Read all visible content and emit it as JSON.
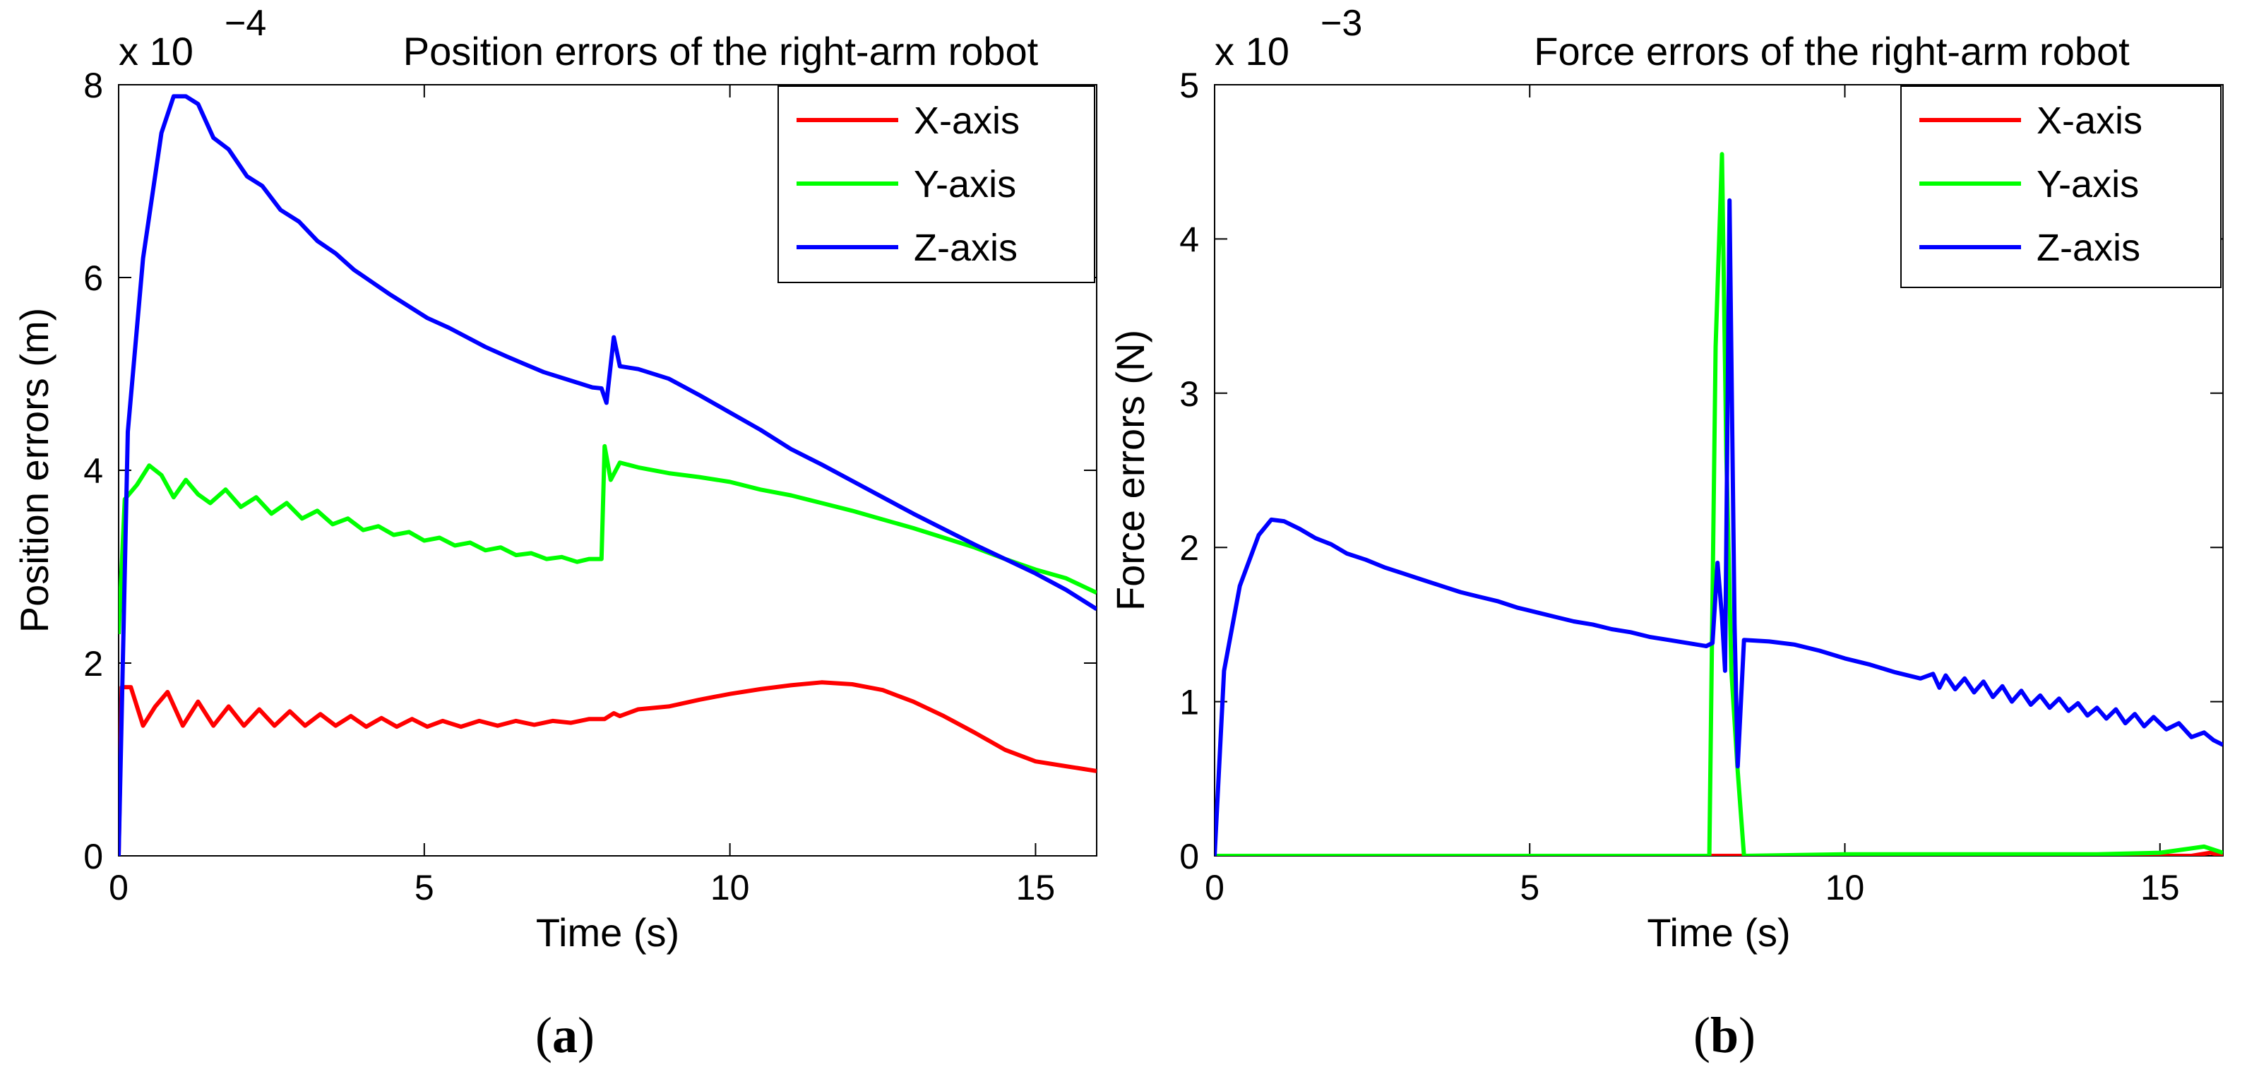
{
  "chart_data": [
    {
      "type": "line",
      "panel": "(a)",
      "panel_letter": "a",
      "title": "Position errors of the right-arm robot",
      "multiplier": "x 10",
      "exponent": "−4",
      "xlabel": "Time (s)",
      "ylabel": "Position errors (m)",
      "xlim": [
        0,
        16
      ],
      "ylim": [
        0,
        8
      ],
      "xticks": [
        0,
        5,
        10,
        15
      ],
      "yticks": [
        0,
        2,
        4,
        6,
        8
      ],
      "ytick_labels": [
        "0",
        "2",
        "4",
        "6",
        "8"
      ],
      "grid": false,
      "legend_position": "top-right",
      "series": [
        {
          "name": "X-axis",
          "color": "#ff0000",
          "points": [
            [
              0,
              0
            ],
            [
              0.05,
              1.75
            ],
            [
              0.2,
              1.75
            ],
            [
              0.4,
              1.35
            ],
            [
              0.6,
              1.55
            ],
            [
              0.8,
              1.7
            ],
            [
              1.05,
              1.35
            ],
            [
              1.3,
              1.6
            ],
            [
              1.55,
              1.35
            ],
            [
              1.8,
              1.55
            ],
            [
              2.05,
              1.35
            ],
            [
              2.3,
              1.52
            ],
            [
              2.55,
              1.35
            ],
            [
              2.8,
              1.5
            ],
            [
              3.05,
              1.35
            ],
            [
              3.3,
              1.47
            ],
            [
              3.55,
              1.35
            ],
            [
              3.8,
              1.45
            ],
            [
              4.05,
              1.34
            ],
            [
              4.3,
              1.43
            ],
            [
              4.55,
              1.34
            ],
            [
              4.8,
              1.42
            ],
            [
              5.05,
              1.34
            ],
            [
              5.3,
              1.4
            ],
            [
              5.6,
              1.34
            ],
            [
              5.9,
              1.4
            ],
            [
              6.2,
              1.35
            ],
            [
              6.5,
              1.4
            ],
            [
              6.8,
              1.36
            ],
            [
              7.1,
              1.4
            ],
            [
              7.4,
              1.38
            ],
            [
              7.7,
              1.42
            ],
            [
              7.95,
              1.42
            ],
            [
              8.1,
              1.48
            ],
            [
              8.2,
              1.45
            ],
            [
              8.5,
              1.52
            ],
            [
              9.0,
              1.55
            ],
            [
              9.5,
              1.62
            ],
            [
              10.0,
              1.68
            ],
            [
              10.5,
              1.73
            ],
            [
              11.0,
              1.77
            ],
            [
              11.5,
              1.8
            ],
            [
              12.0,
              1.78
            ],
            [
              12.5,
              1.72
            ],
            [
              13.0,
              1.6
            ],
            [
              13.5,
              1.45
            ],
            [
              14.0,
              1.28
            ],
            [
              14.5,
              1.1
            ],
            [
              15.0,
              0.98
            ],
            [
              15.5,
              0.93
            ],
            [
              16.0,
              0.88
            ]
          ]
        },
        {
          "name": "Y-axis",
          "color": "#00ff00",
          "points": [
            [
              0,
              2.3
            ],
            [
              0.1,
              3.7
            ],
            [
              0.3,
              3.85
            ],
            [
              0.5,
              4.05
            ],
            [
              0.7,
              3.95
            ],
            [
              0.9,
              3.72
            ],
            [
              1.1,
              3.9
            ],
            [
              1.3,
              3.75
            ],
            [
              1.5,
              3.66
            ],
            [
              1.75,
              3.8
            ],
            [
              2.0,
              3.62
            ],
            [
              2.25,
              3.72
            ],
            [
              2.5,
              3.55
            ],
            [
              2.75,
              3.66
            ],
            [
              3.0,
              3.5
            ],
            [
              3.25,
              3.58
            ],
            [
              3.5,
              3.44
            ],
            [
              3.75,
              3.5
            ],
            [
              4.0,
              3.38
            ],
            [
              4.25,
              3.42
            ],
            [
              4.5,
              3.33
            ],
            [
              4.75,
              3.36
            ],
            [
              5.0,
              3.27
            ],
            [
              5.25,
              3.3
            ],
            [
              5.5,
              3.22
            ],
            [
              5.75,
              3.25
            ],
            [
              6.0,
              3.17
            ],
            [
              6.25,
              3.2
            ],
            [
              6.5,
              3.12
            ],
            [
              6.75,
              3.14
            ],
            [
              7.0,
              3.08
            ],
            [
              7.25,
              3.1
            ],
            [
              7.5,
              3.05
            ],
            [
              7.7,
              3.08
            ],
            [
              7.9,
              3.08
            ],
            [
              7.95,
              4.25
            ],
            [
              8.05,
              3.9
            ],
            [
              8.2,
              4.08
            ],
            [
              8.5,
              4.03
            ],
            [
              9.0,
              3.97
            ],
            [
              9.5,
              3.93
            ],
            [
              10.0,
              3.88
            ],
            [
              10.5,
              3.8
            ],
            [
              11.0,
              3.74
            ],
            [
              11.5,
              3.66
            ],
            [
              12.0,
              3.58
            ],
            [
              12.5,
              3.49
            ],
            [
              13.0,
              3.4
            ],
            [
              13.5,
              3.3
            ],
            [
              14.0,
              3.2
            ],
            [
              14.5,
              3.08
            ],
            [
              15.0,
              2.97
            ],
            [
              15.5,
              2.88
            ],
            [
              16.0,
              2.73
            ]
          ]
        },
        {
          "name": "Z-axis",
          "color": "#0000ff",
          "points": [
            [
              0,
              0
            ],
            [
              0.15,
              4.4
            ],
            [
              0.4,
              6.2
            ],
            [
              0.7,
              7.5
            ],
            [
              0.9,
              7.88
            ],
            [
              1.1,
              7.88
            ],
            [
              1.3,
              7.8
            ],
            [
              1.55,
              7.45
            ],
            [
              1.8,
              7.33
            ],
            [
              2.1,
              7.05
            ],
            [
              2.35,
              6.95
            ],
            [
              2.65,
              6.7
            ],
            [
              2.95,
              6.58
            ],
            [
              3.25,
              6.38
            ],
            [
              3.55,
              6.25
            ],
            [
              3.85,
              6.08
            ],
            [
              4.15,
              5.95
            ],
            [
              4.45,
              5.82
            ],
            [
              4.75,
              5.7
            ],
            [
              5.05,
              5.58
            ],
            [
              5.4,
              5.48
            ],
            [
              5.7,
              5.38
            ],
            [
              6.0,
              5.28
            ],
            [
              6.35,
              5.18
            ],
            [
              6.65,
              5.1
            ],
            [
              6.95,
              5.02
            ],
            [
              7.25,
              4.96
            ],
            [
              7.55,
              4.9
            ],
            [
              7.75,
              4.86
            ],
            [
              7.9,
              4.85
            ],
            [
              7.98,
              4.7
            ],
            [
              8.1,
              5.38
            ],
            [
              8.2,
              5.08
            ],
            [
              8.5,
              5.05
            ],
            [
              9.0,
              4.95
            ],
            [
              9.5,
              4.78
            ],
            [
              10.0,
              4.6
            ],
            [
              10.5,
              4.42
            ],
            [
              11.0,
              4.22
            ],
            [
              11.5,
              4.06
            ],
            [
              12.0,
              3.89
            ],
            [
              12.5,
              3.72
            ],
            [
              13.0,
              3.55
            ],
            [
              13.5,
              3.39
            ],
            [
              14.0,
              3.23
            ],
            [
              14.5,
              3.08
            ],
            [
              15.0,
              2.93
            ],
            [
              15.5,
              2.76
            ],
            [
              16.0,
              2.56
            ]
          ]
        }
      ]
    },
    {
      "type": "line",
      "panel": "(b)",
      "panel_letter": "b",
      "title": "Force errors of the right-arm robot",
      "multiplier": "x 10",
      "exponent": "−3",
      "xlabel": "Time (s)",
      "ylabel": "Force errors (N)",
      "xlim": [
        0,
        16
      ],
      "ylim": [
        0,
        5
      ],
      "xticks": [
        0,
        5,
        10,
        15
      ],
      "yticks": [
        0,
        1,
        2,
        3,
        4,
        5
      ],
      "ytick_labels": [
        "0",
        "1",
        "2",
        "3",
        "4",
        "5"
      ],
      "grid": false,
      "legend_position": "top-right",
      "series": [
        {
          "name": "X-axis",
          "color": "#ff0000",
          "points": [
            [
              0,
              0
            ],
            [
              15.5,
              0
            ],
            [
              15.8,
              0.02
            ],
            [
              16.0,
              0
            ]
          ]
        },
        {
          "name": "Y-axis",
          "color": "#00ff00",
          "points": [
            [
              0,
              0
            ],
            [
              7.85,
              0
            ],
            [
              7.95,
              3.3
            ],
            [
              8.05,
              4.55
            ],
            [
              8.12,
              2.6
            ],
            [
              8.2,
              1.2
            ],
            [
              8.3,
              0.55
            ],
            [
              8.4,
              0.0
            ],
            [
              10.0,
              0.01
            ],
            [
              12.0,
              0.01
            ],
            [
              14.0,
              0.01
            ],
            [
              15.0,
              0.02
            ],
            [
              15.7,
              0.06
            ],
            [
              16.0,
              0.02
            ]
          ]
        },
        {
          "name": "Z-axis",
          "color": "#0000ff",
          "points": [
            [
              0,
              0
            ],
            [
              0.15,
              1.2
            ],
            [
              0.4,
              1.75
            ],
            [
              0.7,
              2.08
            ],
            [
              0.9,
              2.18
            ],
            [
              1.1,
              2.17
            ],
            [
              1.35,
              2.12
            ],
            [
              1.6,
              2.06
            ],
            [
              1.85,
              2.02
            ],
            [
              2.1,
              1.96
            ],
            [
              2.4,
              1.92
            ],
            [
              2.7,
              1.87
            ],
            [
              3.0,
              1.83
            ],
            [
              3.3,
              1.79
            ],
            [
              3.6,
              1.75
            ],
            [
              3.9,
              1.71
            ],
            [
              4.2,
              1.68
            ],
            [
              4.5,
              1.65
            ],
            [
              4.8,
              1.61
            ],
            [
              5.1,
              1.58
            ],
            [
              5.4,
              1.55
            ],
            [
              5.7,
              1.52
            ],
            [
              6.0,
              1.5
            ],
            [
              6.3,
              1.47
            ],
            [
              6.6,
              1.45
            ],
            [
              6.9,
              1.42
            ],
            [
              7.2,
              1.4
            ],
            [
              7.5,
              1.38
            ],
            [
              7.8,
              1.36
            ],
            [
              7.9,
              1.38
            ],
            [
              7.98,
              1.9
            ],
            [
              8.05,
              1.55
            ],
            [
              8.1,
              1.2
            ],
            [
              8.17,
              4.25
            ],
            [
              8.25,
              1.5
            ],
            [
              8.3,
              0.58
            ],
            [
              8.4,
              1.4
            ],
            [
              8.8,
              1.39
            ],
            [
              9.2,
              1.37
            ],
            [
              9.6,
              1.33
            ],
            [
              10.0,
              1.28
            ],
            [
              10.4,
              1.24
            ],
            [
              10.8,
              1.19
            ],
            [
              11.2,
              1.15
            ],
            [
              11.4,
              1.18
            ],
            [
              11.5,
              1.09
            ],
            [
              11.6,
              1.17
            ],
            [
              11.75,
              1.08
            ],
            [
              11.9,
              1.15
            ],
            [
              12.05,
              1.06
            ],
            [
              12.2,
              1.13
            ],
            [
              12.35,
              1.03
            ],
            [
              12.5,
              1.1
            ],
            [
              12.65,
              1.0
            ],
            [
              12.8,
              1.07
            ],
            [
              12.95,
              0.98
            ],
            [
              13.1,
              1.04
            ],
            [
              13.25,
              0.96
            ],
            [
              13.4,
              1.02
            ],
            [
              13.55,
              0.94
            ],
            [
              13.7,
              0.99
            ],
            [
              13.85,
              0.91
            ],
            [
              14.0,
              0.96
            ],
            [
              14.15,
              0.89
            ],
            [
              14.3,
              0.95
            ],
            [
              14.45,
              0.86
            ],
            [
              14.6,
              0.92
            ],
            [
              14.75,
              0.84
            ],
            [
              14.9,
              0.9
            ],
            [
              15.1,
              0.82
            ],
            [
              15.3,
              0.86
            ],
            [
              15.5,
              0.77
            ],
            [
              15.7,
              0.8
            ],
            [
              15.85,
              0.75
            ],
            [
              16.0,
              0.72
            ]
          ]
        }
      ]
    }
  ]
}
